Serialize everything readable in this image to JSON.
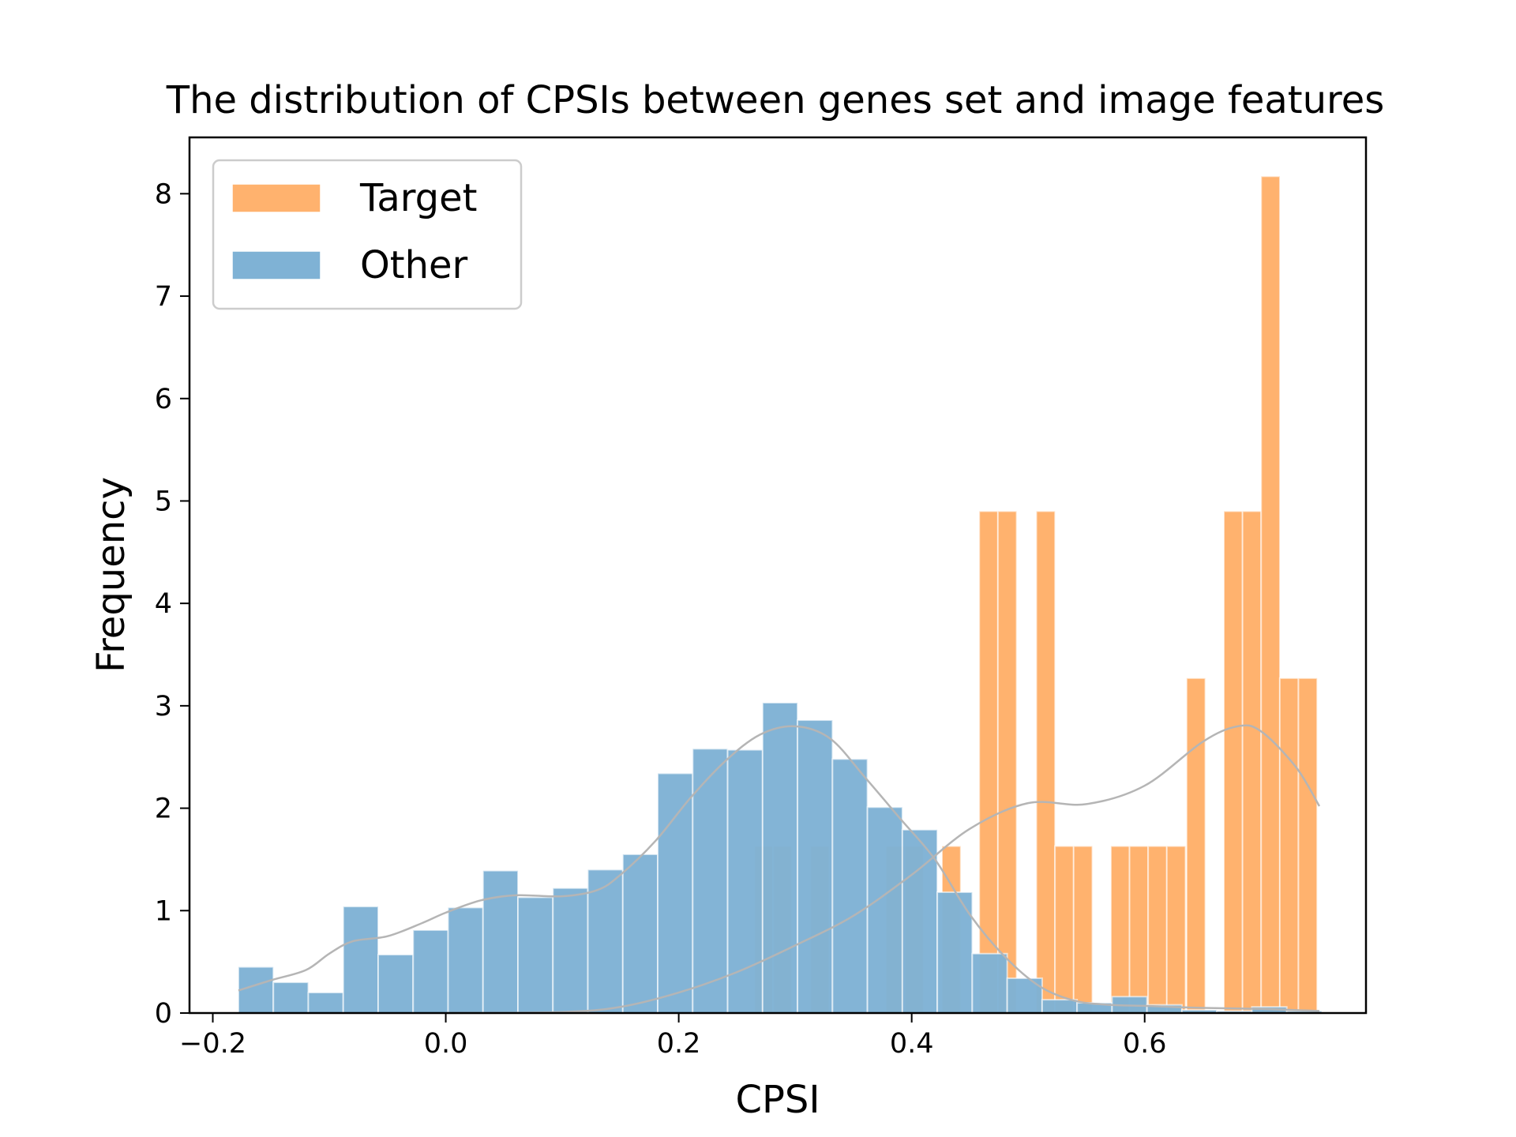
{
  "chart_data": {
    "type": "bar",
    "title": "The distribution of CPSIs between genes set and image features",
    "xlabel": "CPSI",
    "ylabel": "Frequency",
    "xlim": [
      -0.22,
      0.79
    ],
    "ylim": [
      0,
      8.55
    ],
    "xticks": [
      -0.2,
      0.0,
      0.2,
      0.4,
      0.6
    ],
    "xtick_labels": [
      "−0.2",
      "0.0",
      "0.2",
      "0.4",
      "0.6"
    ],
    "yticks": [
      0,
      1,
      2,
      3,
      4,
      5,
      6,
      7,
      8
    ],
    "ytick_labels": [
      "0",
      "1",
      "2",
      "3",
      "4",
      "5",
      "6",
      "7",
      "8"
    ],
    "legend_position": "top-left",
    "grid": false,
    "series": [
      {
        "name": "Target",
        "color": "#ffb26e",
        "bin_width": 0.0161,
        "bins": [
          {
            "x0": 0.265,
            "value": 1.63
          },
          {
            "x0": 0.281,
            "value": 1.63
          },
          {
            "x0": 0.313,
            "value": 1.63
          },
          {
            "x0": 0.378,
            "value": 1.63
          },
          {
            "x0": 0.394,
            "value": 1.63
          },
          {
            "x0": 0.426,
            "value": 1.63
          },
          {
            "x0": 0.458,
            "value": 4.9
          },
          {
            "x0": 0.474,
            "value": 4.9
          },
          {
            "x0": 0.507,
            "value": 4.9
          },
          {
            "x0": 0.523,
            "value": 1.63
          },
          {
            "x0": 0.539,
            "value": 1.63
          },
          {
            "x0": 0.571,
            "value": 1.63
          },
          {
            "x0": 0.587,
            "value": 1.63
          },
          {
            "x0": 0.603,
            "value": 1.63
          },
          {
            "x0": 0.619,
            "value": 1.63
          },
          {
            "x0": 0.636,
            "value": 3.27
          },
          {
            "x0": 0.668,
            "value": 4.9
          },
          {
            "x0": 0.684,
            "value": 4.9
          },
          {
            "x0": 0.7,
            "value": 8.17
          },
          {
            "x0": 0.716,
            "value": 3.27
          },
          {
            "x0": 0.732,
            "value": 3.27
          }
        ],
        "kde": [
          [
            0.0,
            0.0
          ],
          [
            0.1,
            0.01
          ],
          [
            0.15,
            0.06
          ],
          [
            0.2,
            0.2
          ],
          [
            0.25,
            0.4
          ],
          [
            0.3,
            0.66
          ],
          [
            0.35,
            0.95
          ],
          [
            0.4,
            1.35
          ],
          [
            0.45,
            1.8
          ],
          [
            0.5,
            2.05
          ],
          [
            0.55,
            2.04
          ],
          [
            0.6,
            2.22
          ],
          [
            0.65,
            2.65
          ],
          [
            0.68,
            2.8
          ],
          [
            0.7,
            2.75
          ],
          [
            0.73,
            2.4
          ],
          [
            0.75,
            2.02
          ]
        ]
      },
      {
        "name": "Other",
        "color": "#7fb2d5",
        "bin_width": 0.03,
        "bins": [
          {
            "x0": -0.178,
            "value": 0.45
          },
          {
            "x0": -0.148,
            "value": 0.3
          },
          {
            "x0": -0.118,
            "value": 0.2
          },
          {
            "x0": -0.088,
            "value": 1.04
          },
          {
            "x0": -0.058,
            "value": 0.57
          },
          {
            "x0": -0.028,
            "value": 0.81
          },
          {
            "x0": 0.002,
            "value": 1.03
          },
          {
            "x0": 0.032,
            "value": 1.39
          },
          {
            "x0": 0.062,
            "value": 1.13
          },
          {
            "x0": 0.092,
            "value": 1.22
          },
          {
            "x0": 0.122,
            "value": 1.4
          },
          {
            "x0": 0.152,
            "value": 1.55
          },
          {
            "x0": 0.182,
            "value": 2.34
          },
          {
            "x0": 0.212,
            "value": 2.58
          },
          {
            "x0": 0.242,
            "value": 2.57
          },
          {
            "x0": 0.272,
            "value": 3.03
          },
          {
            "x0": 0.302,
            "value": 2.86
          },
          {
            "x0": 0.332,
            "value": 2.48
          },
          {
            "x0": 0.362,
            "value": 2.01
          },
          {
            "x0": 0.392,
            "value": 1.79
          },
          {
            "x0": 0.422,
            "value": 1.18
          },
          {
            "x0": 0.452,
            "value": 0.58
          },
          {
            "x0": 0.482,
            "value": 0.34
          },
          {
            "x0": 0.512,
            "value": 0.13
          },
          {
            "x0": 0.542,
            "value": 0.1
          },
          {
            "x0": 0.572,
            "value": 0.16
          },
          {
            "x0": 0.602,
            "value": 0.08
          },
          {
            "x0": 0.632,
            "value": 0.03
          },
          {
            "x0": 0.662,
            "value": 0.02
          },
          {
            "x0": 0.692,
            "value": 0.06
          },
          {
            "x0": 0.722,
            "value": 0.02
          }
        ],
        "kde": [
          [
            -0.178,
            0.22
          ],
          [
            -0.15,
            0.32
          ],
          [
            -0.12,
            0.42
          ],
          [
            -0.1,
            0.58
          ],
          [
            -0.08,
            0.7
          ],
          [
            -0.05,
            0.75
          ],
          [
            -0.02,
            0.88
          ],
          [
            0.0,
            0.98
          ],
          [
            0.03,
            1.1
          ],
          [
            0.06,
            1.15
          ],
          [
            0.1,
            1.14
          ],
          [
            0.13,
            1.2
          ],
          [
            0.15,
            1.35
          ],
          [
            0.18,
            1.68
          ],
          [
            0.21,
            2.1
          ],
          [
            0.24,
            2.46
          ],
          [
            0.27,
            2.72
          ],
          [
            0.3,
            2.8
          ],
          [
            0.33,
            2.68
          ],
          [
            0.36,
            2.3
          ],
          [
            0.39,
            1.9
          ],
          [
            0.42,
            1.5
          ],
          [
            0.45,
            0.96
          ],
          [
            0.48,
            0.55
          ],
          [
            0.51,
            0.26
          ],
          [
            0.54,
            0.12
          ],
          [
            0.57,
            0.08
          ],
          [
            0.6,
            0.07
          ],
          [
            0.65,
            0.05
          ],
          [
            0.7,
            0.04
          ],
          [
            0.75,
            0.02
          ]
        ]
      }
    ]
  }
}
